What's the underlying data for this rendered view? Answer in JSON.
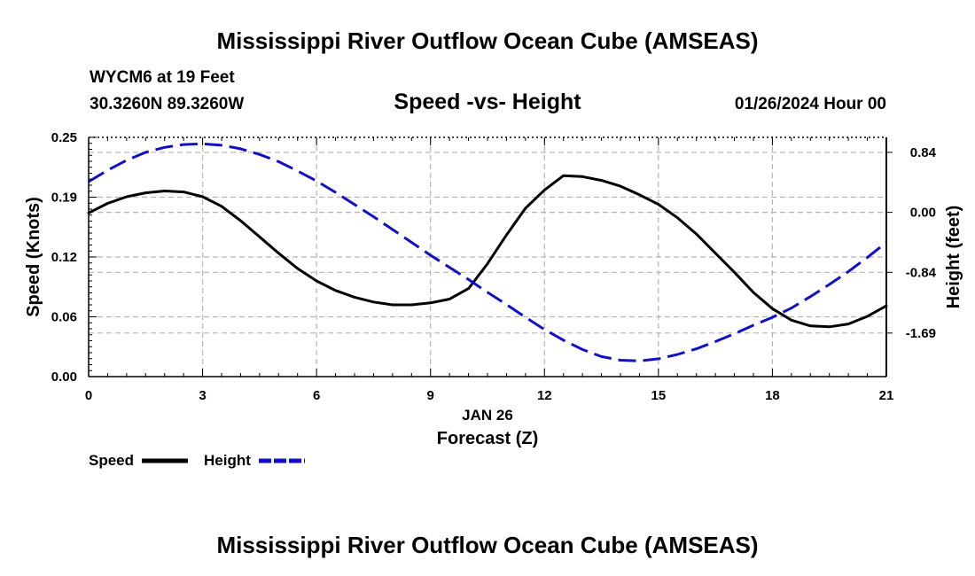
{
  "page": {
    "title_top": "Mississippi River Outflow Ocean Cube (AMSEAS)",
    "title_bottom": "Mississippi River Outflow Ocean Cube (AMSEAS)",
    "station": "WYCM6 at 19 Feet",
    "coords": "30.3260N  89.3260W",
    "subtitle": "Speed -vs- Height",
    "datetime": "01/26/2024 Hour 00"
  },
  "colors": {
    "speed": "#000000",
    "height": "#1010c8",
    "grid": "#b4b4b4"
  },
  "chart_data": {
    "type": "line",
    "title": "Speed -vs- Height",
    "xlabel_date": "JAN 26",
    "xlabel": "Forecast (Z)",
    "ylabel": "Speed (Knots)",
    "ylabel_right": "Height (feet)",
    "xlim": [
      0,
      21
    ],
    "ylim": [
      0,
      0.25
    ],
    "ylim_right": [
      -2.3,
      1.05
    ],
    "x_ticks": [
      "0",
      "3",
      "6",
      "9",
      "12",
      "15",
      "18",
      "21"
    ],
    "y_ticks": [
      "0.00",
      "0.06",
      "0.12",
      "0.19",
      "0.25"
    ],
    "y_ticks_right": [
      "0.84",
      "0.00",
      "-0.84",
      "-1.69"
    ],
    "y_tick_values": [
      0,
      0.0625,
      0.125,
      0.1875,
      0.25
    ],
    "y_tick_values_right": [
      0.84,
      0.0,
      -0.84,
      -1.69
    ],
    "grid": true,
    "series": [
      {
        "name": "Speed",
        "axis": "left",
        "style": "solid",
        "x": [
          0,
          0.5,
          1,
          1.5,
          2,
          2.5,
          3,
          3.5,
          4,
          4.5,
          5,
          5.5,
          6,
          6.5,
          7,
          7.5,
          8,
          8.5,
          9,
          9.5,
          10,
          10.5,
          11,
          11.5,
          12,
          12.5,
          13,
          13.5,
          14,
          14.5,
          15,
          15.5,
          16,
          16.5,
          17,
          17.5,
          18,
          18.5,
          19,
          19.5,
          20,
          20.5,
          21
        ],
        "values": [
          0.171,
          0.181,
          0.188,
          0.192,
          0.194,
          0.193,
          0.188,
          0.178,
          0.163,
          0.146,
          0.129,
          0.113,
          0.1,
          0.09,
          0.083,
          0.078,
          0.075,
          0.075,
          0.077,
          0.081,
          0.092,
          0.118,
          0.148,
          0.176,
          0.195,
          0.21,
          0.209,
          0.205,
          0.199,
          0.19,
          0.18,
          0.166,
          0.149,
          0.129,
          0.109,
          0.088,
          0.071,
          0.059,
          0.053,
          0.052,
          0.055,
          0.063,
          0.074
        ]
      },
      {
        "name": "Height",
        "axis": "right",
        "style": "dashed",
        "x": [
          0,
          0.5,
          1,
          1.5,
          2,
          2.5,
          3,
          3.5,
          4,
          4.5,
          5,
          5.5,
          6,
          6.5,
          7,
          7.5,
          8,
          8.5,
          9,
          9.5,
          10,
          10.5,
          11,
          11.5,
          12,
          12.5,
          13,
          13.5,
          14,
          14.5,
          15,
          15.5,
          16,
          16.5,
          17,
          17.5,
          18,
          18.5,
          19,
          19.5,
          20,
          20.5,
          21
        ],
        "values": [
          0.43,
          0.59,
          0.73,
          0.84,
          0.91,
          0.95,
          0.96,
          0.94,
          0.89,
          0.81,
          0.71,
          0.58,
          0.44,
          0.28,
          0.11,
          -0.06,
          -0.24,
          -0.42,
          -0.6,
          -0.77,
          -0.94,
          -1.12,
          -1.29,
          -1.47,
          -1.64,
          -1.79,
          -1.92,
          -2.02,
          -2.07,
          -2.08,
          -2.05,
          -1.99,
          -1.91,
          -1.81,
          -1.7,
          -1.58,
          -1.47,
          -1.34,
          -1.18,
          -1.01,
          -0.83,
          -0.63,
          -0.42
        ]
      }
    ],
    "legend": [
      {
        "label": "Speed",
        "style": "solid",
        "color": "#000000"
      },
      {
        "label": "Height",
        "style": "dashed",
        "color": "#1010c8"
      }
    ],
    "legend_position": "bottom-left"
  }
}
